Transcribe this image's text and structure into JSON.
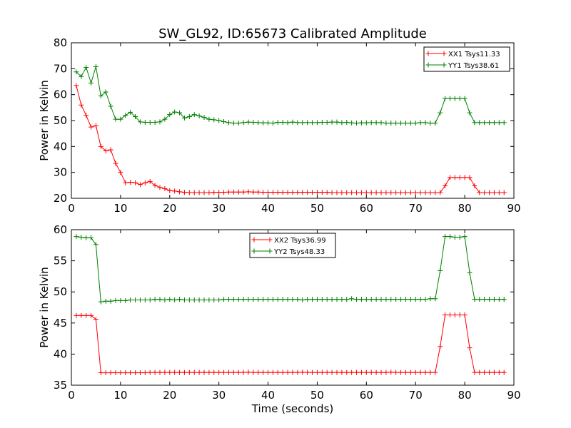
{
  "chart_data": [
    {
      "type": "line",
      "title": "SW_GL92, ID:65673 Calibrated Amplitude",
      "xlabel": "",
      "ylabel": "Power in Kelvin",
      "xlim": [
        0,
        90
      ],
      "ylim": [
        20,
        80
      ],
      "xticks": [
        0,
        10,
        20,
        30,
        40,
        50,
        60,
        70,
        80,
        90
      ],
      "yticks": [
        20,
        30,
        40,
        50,
        60,
        70,
        80
      ],
      "grid": false,
      "legend_position": "top-right",
      "x": [
        1,
        2,
        3,
        4,
        5,
        6,
        7,
        8,
        9,
        10,
        11,
        12,
        13,
        14,
        15,
        16,
        17,
        18,
        19,
        20,
        21,
        22,
        23,
        24,
        25,
        26,
        27,
        28,
        29,
        30,
        31,
        32,
        33,
        34,
        35,
        36,
        37,
        38,
        39,
        40,
        41,
        42,
        43,
        44,
        45,
        46,
        47,
        48,
        49,
        50,
        51,
        52,
        53,
        54,
        55,
        56,
        57,
        58,
        59,
        60,
        61,
        62,
        63,
        64,
        65,
        66,
        67,
        68,
        69,
        70,
        71,
        72,
        73,
        74,
        75,
        76,
        77,
        78,
        79,
        80,
        81,
        82,
        83,
        84,
        85,
        86,
        87,
        88
      ],
      "series": [
        {
          "name": "XX1 Tsys11.33",
          "color": "#ff0000",
          "values": [
            63.5,
            56,
            52,
            47.5,
            48,
            40,
            38.3,
            38.7,
            33.5,
            30,
            26,
            26.2,
            26,
            25.3,
            26,
            26.5,
            25,
            24.2,
            23.7,
            23,
            22.8,
            22.5,
            22.3,
            22.2,
            22.2,
            22.2,
            22.2,
            22.2,
            22.3,
            22.3,
            22.3,
            22.4,
            22.4,
            22.4,
            22.4,
            22.5,
            22.4,
            22.4,
            22.3,
            22.3,
            22.3,
            22.3,
            22.3,
            22.3,
            22.3,
            22.3,
            22.3,
            22.3,
            22.3,
            22.3,
            22.3,
            22.3,
            22.2,
            22.2,
            22.2,
            22.2,
            22.2,
            22.2,
            22.2,
            22.2,
            22.2,
            22.2,
            22.2,
            22.2,
            22.2,
            22.2,
            22.2,
            22.2,
            22.2,
            22.2,
            22.2,
            22.2,
            22.2,
            22.2,
            22.2,
            24.8,
            28,
            28,
            28,
            28,
            28,
            24.8,
            22.2,
            22.2,
            22.2,
            22.2,
            22.2,
            22.2
          ]
        },
        {
          "name": "YY1 Tsys38.61",
          "color": "#008000",
          "values": [
            68.8,
            67,
            70.5,
            64.5,
            70.8,
            59.5,
            61,
            55.5,
            50.5,
            50.5,
            52,
            53.2,
            51.5,
            49.5,
            49.3,
            49.3,
            49.3,
            49.5,
            50.5,
            52.3,
            53.3,
            53,
            51,
            51.5,
            52.3,
            51.8,
            51.2,
            50.5,
            50.3,
            50,
            49.6,
            49.2,
            49,
            49,
            49.2,
            49.4,
            49.3,
            49.2,
            49.1,
            49.1,
            49,
            49.3,
            49.3,
            49.2,
            49.4,
            49.2,
            49.2,
            49.2,
            49.2,
            49.2,
            49.3,
            49.3,
            49.4,
            49.4,
            49.2,
            49.3,
            49.1,
            49,
            49.1,
            49.1,
            49.2,
            49.2,
            49.2,
            49,
            49,
            49,
            49,
            49,
            49,
            49,
            49.2,
            49.2,
            49,
            49,
            53,
            58.5,
            58.5,
            58.5,
            58.5,
            58.5,
            53,
            49.2,
            49.2,
            49.2,
            49.2,
            49.2,
            49.2,
            49.2
          ]
        }
      ]
    },
    {
      "type": "line",
      "title": "",
      "xlabel": "Time (seconds)",
      "ylabel": "Power in Kelvin",
      "xlim": [
        0,
        90
      ],
      "ylim": [
        35,
        60
      ],
      "xticks": [
        0,
        10,
        20,
        30,
        40,
        50,
        60,
        70,
        80,
        90
      ],
      "yticks": [
        35,
        40,
        45,
        50,
        55,
        60
      ],
      "grid": false,
      "legend_position": "top-center",
      "x": [
        1,
        2,
        3,
        4,
        5,
        6,
        7,
        8,
        9,
        10,
        11,
        12,
        13,
        14,
        15,
        16,
        17,
        18,
        19,
        20,
        21,
        22,
        23,
        24,
        25,
        26,
        27,
        28,
        29,
        30,
        31,
        32,
        33,
        34,
        35,
        36,
        37,
        38,
        39,
        40,
        41,
        42,
        43,
        44,
        45,
        46,
        47,
        48,
        49,
        50,
        51,
        52,
        53,
        54,
        55,
        56,
        57,
        58,
        59,
        60,
        61,
        62,
        63,
        64,
        65,
        66,
        67,
        68,
        69,
        70,
        71,
        72,
        73,
        74,
        75,
        76,
        77,
        78,
        79,
        80,
        81,
        82,
        83,
        84,
        85,
        86,
        87,
        88
      ],
      "series": [
        {
          "name": "XX2 Tsys36.99",
          "color": "#ff0000",
          "values": [
            46.2,
            46.2,
            46.2,
            46.2,
            45.6,
            37,
            37,
            37,
            37,
            37,
            37,
            37,
            37,
            37,
            37,
            37.05,
            37.05,
            37.05,
            37.05,
            37.05,
            37.05,
            37.05,
            37.05,
            37.05,
            37.05,
            37.05,
            37.05,
            37.05,
            37.05,
            37.05,
            37.05,
            37.05,
            37.05,
            37.05,
            37.05,
            37.1,
            37.05,
            37.05,
            37.05,
            37.05,
            37.05,
            37.05,
            37.05,
            37.05,
            37.05,
            37.05,
            37.1,
            37.05,
            37.05,
            37.05,
            37.05,
            37.05,
            37.05,
            37.05,
            37.05,
            37.05,
            37.05,
            37.05,
            37.05,
            37.05,
            37.05,
            37.05,
            37.05,
            37.05,
            37.1,
            37.05,
            37.05,
            37.05,
            37.05,
            37.05,
            37.05,
            37.05,
            37.05,
            37.05,
            41.2,
            46.3,
            46.3,
            46.3,
            46.3,
            46.3,
            41,
            37.05,
            37.05,
            37.05,
            37.05,
            37.05,
            37.05,
            37.05
          ]
        },
        {
          "name": "YY2 Tsys48.33",
          "color": "#008000",
          "values": [
            58.9,
            58.8,
            58.7,
            58.7,
            57.6,
            48.4,
            48.5,
            48.5,
            48.6,
            48.6,
            48.6,
            48.7,
            48.7,
            48.7,
            48.7,
            48.7,
            48.8,
            48.8,
            48.7,
            48.8,
            48.7,
            48.8,
            48.7,
            48.7,
            48.7,
            48.7,
            48.7,
            48.7,
            48.7,
            48.7,
            48.8,
            48.8,
            48.8,
            48.8,
            48.8,
            48.8,
            48.8,
            48.8,
            48.8,
            48.8,
            48.8,
            48.8,
            48.8,
            48.8,
            48.8,
            48.8,
            48.7,
            48.8,
            48.8,
            48.8,
            48.8,
            48.8,
            48.8,
            48.8,
            48.8,
            48.8,
            48.9,
            48.8,
            48.8,
            48.8,
            48.8,
            48.8,
            48.8,
            48.8,
            48.8,
            48.8,
            48.8,
            48.8,
            48.8,
            48.8,
            48.8,
            48.8,
            48.9,
            48.9,
            53.4,
            58.9,
            58.9,
            58.8,
            58.8,
            58.9,
            53.1,
            48.8,
            48.8,
            48.8,
            48.8,
            48.8,
            48.8,
            48.8
          ]
        }
      ]
    }
  ]
}
